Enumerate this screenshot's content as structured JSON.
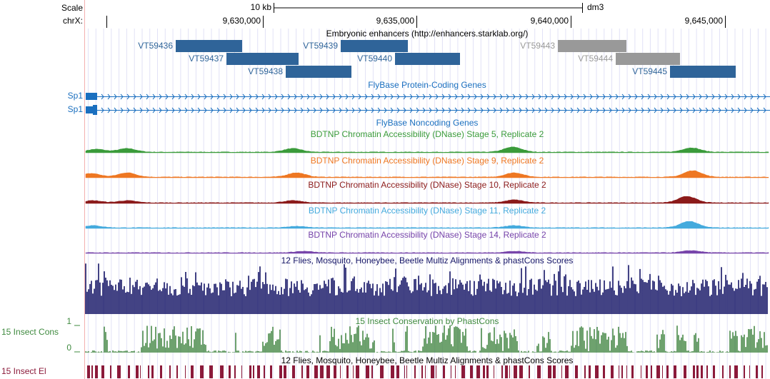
{
  "scale": {
    "label": "Scale",
    "size": "10 kb",
    "assembly": "dm3"
  },
  "position": {
    "chrom": "chrX:",
    "ticks": [
      "9,630,000",
      "9,635,000",
      "9,640,000",
      "9,645,000"
    ]
  },
  "tracks": {
    "enhancers": {
      "title": "Embryonic enhancers (http://enhancers.starklab.org/)",
      "items": [
        "VT59436",
        "VT59437",
        "VT59438",
        "VT59439",
        "VT59440",
        "VT59443",
        "VT59444",
        "VT59445"
      ]
    },
    "protein_coding": {
      "title": "FlyBase Protein-Coding Genes",
      "genes": [
        "Sp1",
        "Sp1"
      ]
    },
    "noncoding": {
      "title": "FlyBase Noncoding Genes"
    },
    "dnase": [
      "BDTNP Chromatin Accessibility (DNase) Stage 5, Replicate 2",
      "BDTNP Chromatin Accessibility (DNase) Stage 9, Replicate 2",
      "BDTNP Chromatin Accessibility (DNase) Stage 10, Replicate 2",
      "BDTNP Chromatin Accessibility (DNase) Stage 11, Replicate 2",
      "BDTNP Chromatin Accessibility (DNase) Stage 14, Replicate 2"
    ],
    "multiz": {
      "title": "12 Flies, Mosquito, Honeybee, Beetle Multiz Alignments & phastCons Scores"
    },
    "phastcons": {
      "title": "15 Insect Conservation by PhastCons",
      "label": "15 Insect Cons",
      "max": 1,
      "min": 0
    },
    "elements": {
      "title": "12 Flies, Mosquito, Honeybee, Beetle Multiz Alignments & phastCons Scores",
      "label": "15 Insect El"
    }
  }
}
